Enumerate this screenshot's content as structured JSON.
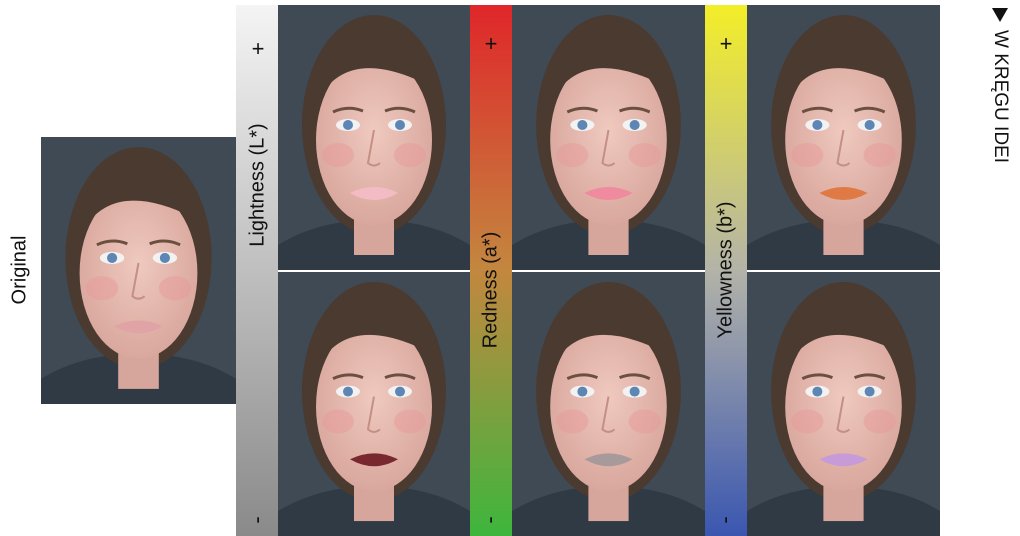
{
  "original_label": "Original",
  "bars": [
    {
      "label": "Lightness (L*)",
      "plus": "+",
      "minus": "-"
    },
    {
      "label": "Redness (a*)",
      "plus": "+",
      "minus": "-"
    },
    {
      "label": "Yellowness (b*)",
      "plus": "+",
      "minus": "-"
    }
  ],
  "sidebar": "W KRĘGU IDEI"
}
